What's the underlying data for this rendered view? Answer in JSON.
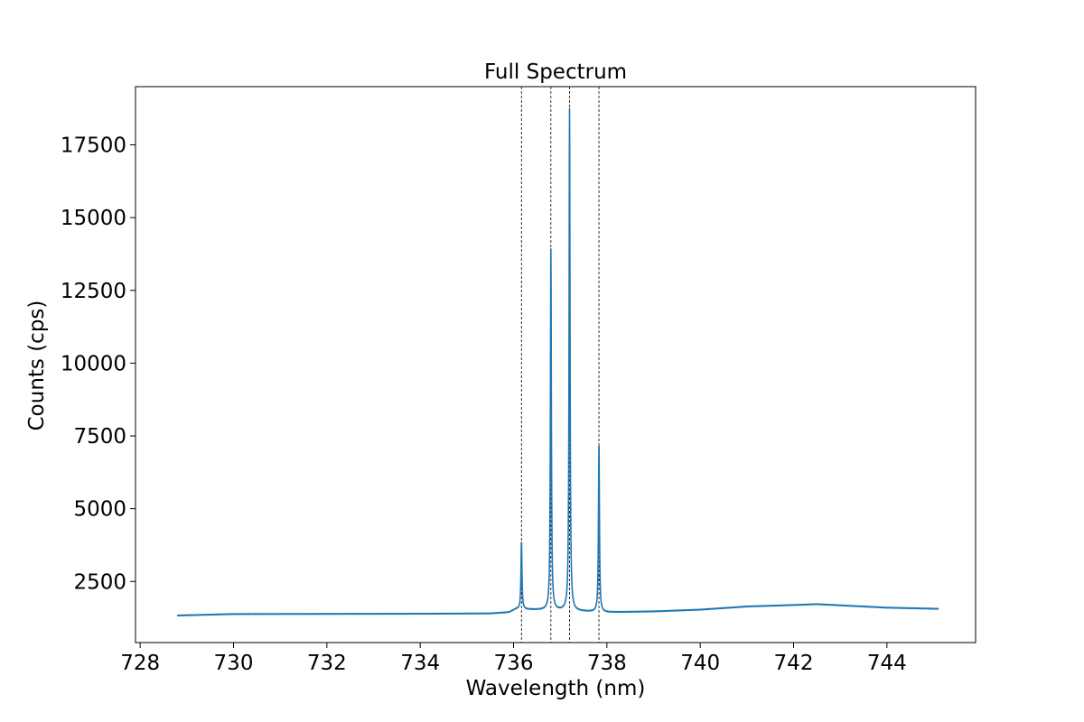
{
  "chart_data": {
    "type": "line",
    "title": "Full Spectrum",
    "xlabel": "Wavelength (nm)",
    "ylabel": "Counts (cps)",
    "xlim": [
      727.9,
      745.9
    ],
    "ylim": [
      400,
      19500
    ],
    "xticks": [
      728,
      730,
      732,
      734,
      736,
      738,
      740,
      742,
      744
    ],
    "yticks": [
      2500,
      5000,
      7500,
      10000,
      12500,
      15000,
      17500
    ],
    "grid": false,
    "legend": "none",
    "reference_lines": [
      736.17,
      736.8,
      737.2,
      737.83
    ],
    "series": [
      {
        "color": "#1f77b4",
        "baseline": [
          [
            728.8,
            1330
          ],
          [
            729.5,
            1360
          ],
          [
            730.0,
            1380
          ],
          [
            732.0,
            1385
          ],
          [
            734.0,
            1390
          ],
          [
            735.5,
            1400
          ],
          [
            735.9,
            1440
          ],
          [
            736.05,
            1550
          ]
        ],
        "peaks": [
          {
            "x": 736.17,
            "height": 3800
          },
          {
            "x": 736.8,
            "height": 13850
          },
          {
            "x": 737.2,
            "height": 18700
          },
          {
            "x": 737.83,
            "height": 7300
          }
        ],
        "tail": [
          [
            738.0,
            1440
          ],
          [
            739.0,
            1470
          ],
          [
            740.0,
            1530
          ],
          [
            741.0,
            1640
          ],
          [
            742.0,
            1690
          ],
          [
            742.5,
            1720
          ],
          [
            743.0,
            1680
          ],
          [
            744.0,
            1600
          ],
          [
            745.1,
            1560
          ]
        ]
      }
    ]
  }
}
